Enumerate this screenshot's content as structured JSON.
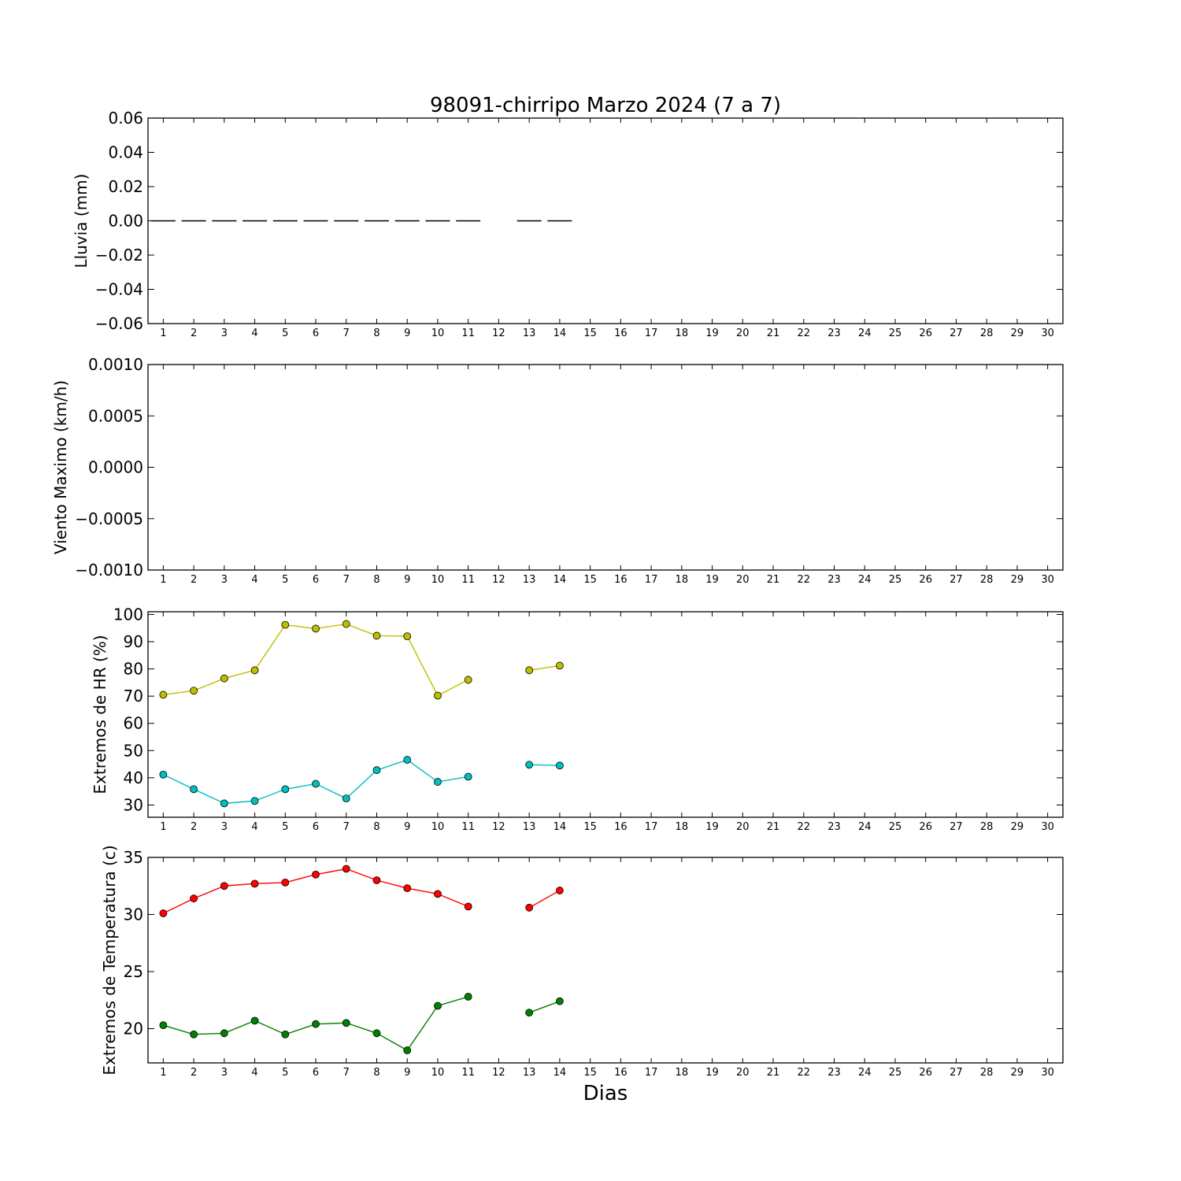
{
  "title": "98091-chirripo Marzo 2024  (7 a 7)",
  "xlabel": "Dias",
  "colors": {
    "hr_max": "#bfbf00",
    "hr_min": "#00bfbf",
    "temp_max": "#ff0000",
    "temp_min": "#008000",
    "rain": "#000000"
  },
  "chart_data": [
    {
      "type": "bar",
      "ylabel": "Lluvia (mm)",
      "ylim": [
        -0.06,
        0.06
      ],
      "yticks": [
        "0.06",
        "0.04",
        "0.02",
        "0.00",
        "−0.02",
        "−0.04",
        "−0.06"
      ],
      "ytick_values": [
        0.06,
        0.04,
        0.02,
        0.0,
        -0.02,
        -0.04,
        -0.06
      ],
      "xlim": [
        0.5,
        30.5
      ],
      "x": [
        1,
        2,
        3,
        4,
        5,
        6,
        7,
        8,
        9,
        10,
        11,
        13,
        14
      ],
      "values": [
        0,
        0,
        0,
        0,
        0,
        0,
        0,
        0,
        0,
        0,
        0,
        0,
        0
      ]
    },
    {
      "type": "line",
      "ylabel": "Viento Maximo (km/h)",
      "ylim": [
        -0.001,
        0.001
      ],
      "yticks": [
        "0.0010",
        "0.0005",
        "0.0000",
        "−0.0005",
        "−0.0010"
      ],
      "ytick_values": [
        0.001,
        0.0005,
        0.0,
        -0.0005,
        -0.001
      ],
      "xlim": [
        0.5,
        30.5
      ],
      "series": []
    },
    {
      "type": "line",
      "ylabel": "Extremos de HR (%)",
      "ylim": [
        25.5,
        101
      ],
      "yticks": [
        "100",
        "90",
        "80",
        "70",
        "60",
        "50",
        "40",
        "30"
      ],
      "ytick_values": [
        100,
        90,
        80,
        70,
        60,
        50,
        40,
        30
      ],
      "xlim": [
        0.5,
        30.5
      ],
      "series": [
        {
          "key": "hr_max",
          "points": [
            [
              1,
              70.5
            ],
            [
              2,
              72
            ],
            [
              3,
              76.5
            ],
            [
              4,
              79.5
            ],
            [
              5,
              96.2
            ],
            [
              6,
              94.8
            ],
            [
              7,
              96.5
            ],
            [
              8,
              92.2
            ],
            [
              9,
              92
            ],
            [
              10,
              70.2
            ],
            [
              11,
              76
            ],
            [
              13,
              79.5
            ],
            [
              14,
              81.2
            ]
          ]
        },
        {
          "key": "hr_min",
          "points": [
            [
              1,
              41.2
            ],
            [
              2,
              35.8
            ],
            [
              3,
              30.6
            ],
            [
              4,
              31.5
            ],
            [
              5,
              35.8
            ],
            [
              6,
              37.8
            ],
            [
              7,
              32.4
            ],
            [
              8,
              42.8
            ],
            [
              9,
              46.6
            ],
            [
              10,
              38.5
            ],
            [
              11,
              40.4
            ],
            [
              13,
              44.8
            ],
            [
              14,
              44.5
            ]
          ]
        }
      ]
    },
    {
      "type": "line",
      "ylabel": "Extremos de Temperatura (c)",
      "ylim": [
        17,
        35
      ],
      "yticks": [
        "35",
        "30",
        "25",
        "20"
      ],
      "ytick_values": [
        35,
        30,
        25,
        20
      ],
      "xlim": [
        0.5,
        30.5
      ],
      "series": [
        {
          "key": "temp_max",
          "points": [
            [
              1,
              30.1
            ],
            [
              2,
              31.4
            ],
            [
              3,
              32.5
            ],
            [
              4,
              32.7
            ],
            [
              5,
              32.8
            ],
            [
              6,
              33.5
            ],
            [
              7,
              34
            ],
            [
              8,
              33
            ],
            [
              9,
              32.3
            ],
            [
              10,
              31.8
            ],
            [
              11,
              30.7
            ],
            [
              13,
              30.6
            ],
            [
              14,
              32.1
            ]
          ]
        },
        {
          "key": "temp_min",
          "points": [
            [
              1,
              20.3
            ],
            [
              2,
              19.5
            ],
            [
              3,
              19.6
            ],
            [
              4,
              20.7
            ],
            [
              5,
              19.5
            ],
            [
              6,
              20.4
            ],
            [
              7,
              20.5
            ],
            [
              8,
              19.6
            ],
            [
              9,
              18.1
            ],
            [
              10,
              22
            ],
            [
              11,
              22.8
            ],
            [
              13,
              21.4
            ],
            [
              14,
              22.4
            ]
          ]
        }
      ]
    }
  ]
}
